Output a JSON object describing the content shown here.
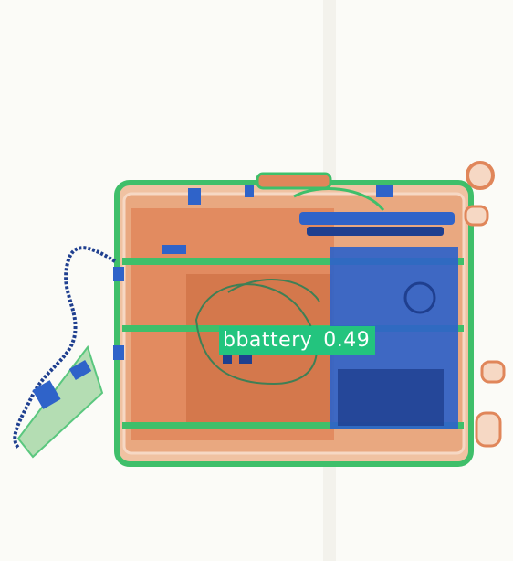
{
  "image": {
    "kind": "x-ray baggage scan",
    "colors": {
      "background": "#fbfbf7",
      "organic": "#e0865a",
      "organic_dark": "#c9693c",
      "mixed": "#3fbf6a",
      "metal": "#2f63c9",
      "metal_dark": "#1f3f8f",
      "label_bg": "#23c47e",
      "label_text": "#ffffff"
    }
  },
  "detection": {
    "class_label": "bbattery",
    "score": "0.49"
  }
}
